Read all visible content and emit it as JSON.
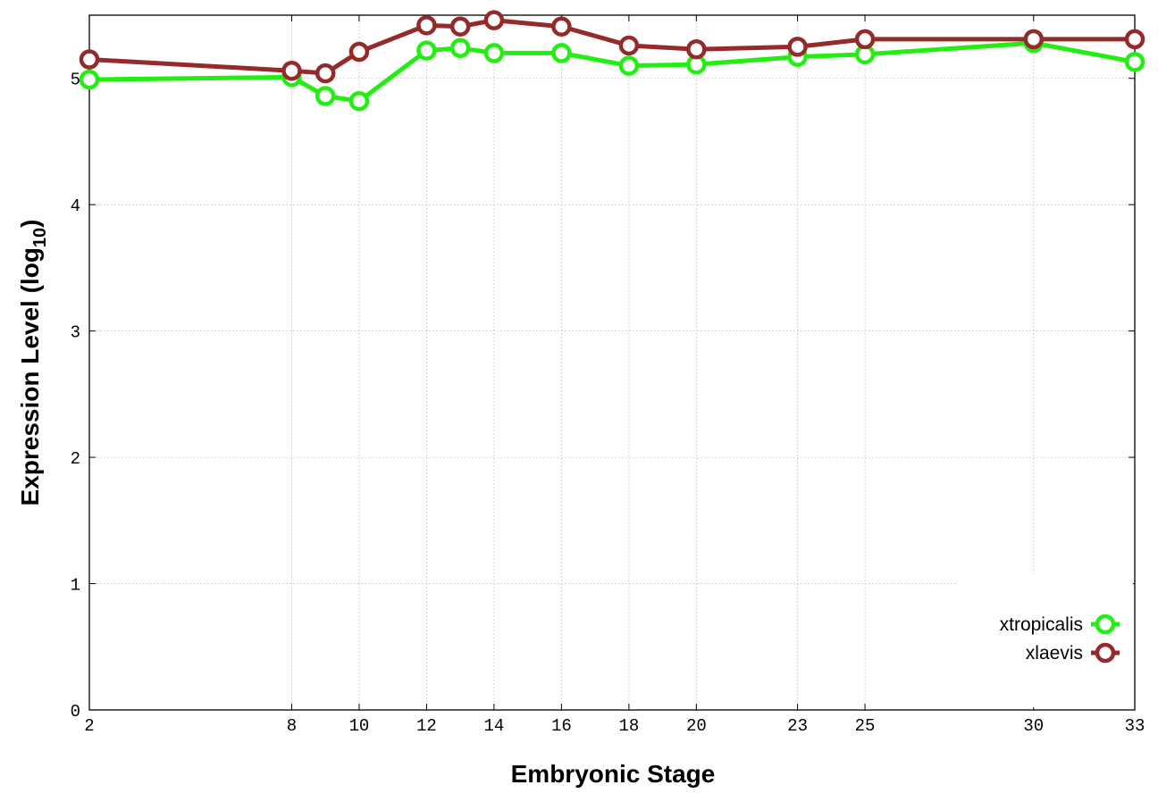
{
  "chart_data": {
    "type": "line",
    "xlabel": "Embryonic Stage",
    "ylabel": "Expression Level (log",
    "ylabel_subscript": "10",
    "ylabel_suffix": ")",
    "x_ticks": [
      2,
      8,
      10,
      12,
      14,
      16,
      18,
      20,
      23,
      25,
      30,
      33
    ],
    "y_ticks": [
      0,
      1,
      2,
      3,
      4,
      5
    ],
    "xlim": [
      2,
      33
    ],
    "ylim": [
      0,
      5.5
    ],
    "grid": true,
    "legend_position": "bottom-right",
    "x": [
      2,
      8,
      9,
      10,
      12,
      13,
      14,
      16,
      18,
      20,
      23,
      25,
      30,
      33
    ],
    "series": [
      {
        "name": "xtropicalis",
        "color": "#22ee11",
        "values": [
          4.99,
          5.01,
          4.86,
          4.82,
          5.22,
          5.24,
          5.2,
          5.2,
          5.1,
          5.11,
          5.17,
          5.19,
          5.28,
          5.13
        ]
      },
      {
        "name": "xlaevis",
        "color": "#952a2a",
        "values": [
          5.15,
          5.06,
          5.04,
          5.21,
          5.42,
          5.41,
          5.46,
          5.41,
          5.26,
          5.23,
          5.25,
          5.31,
          5.31,
          5.31
        ]
      }
    ]
  }
}
